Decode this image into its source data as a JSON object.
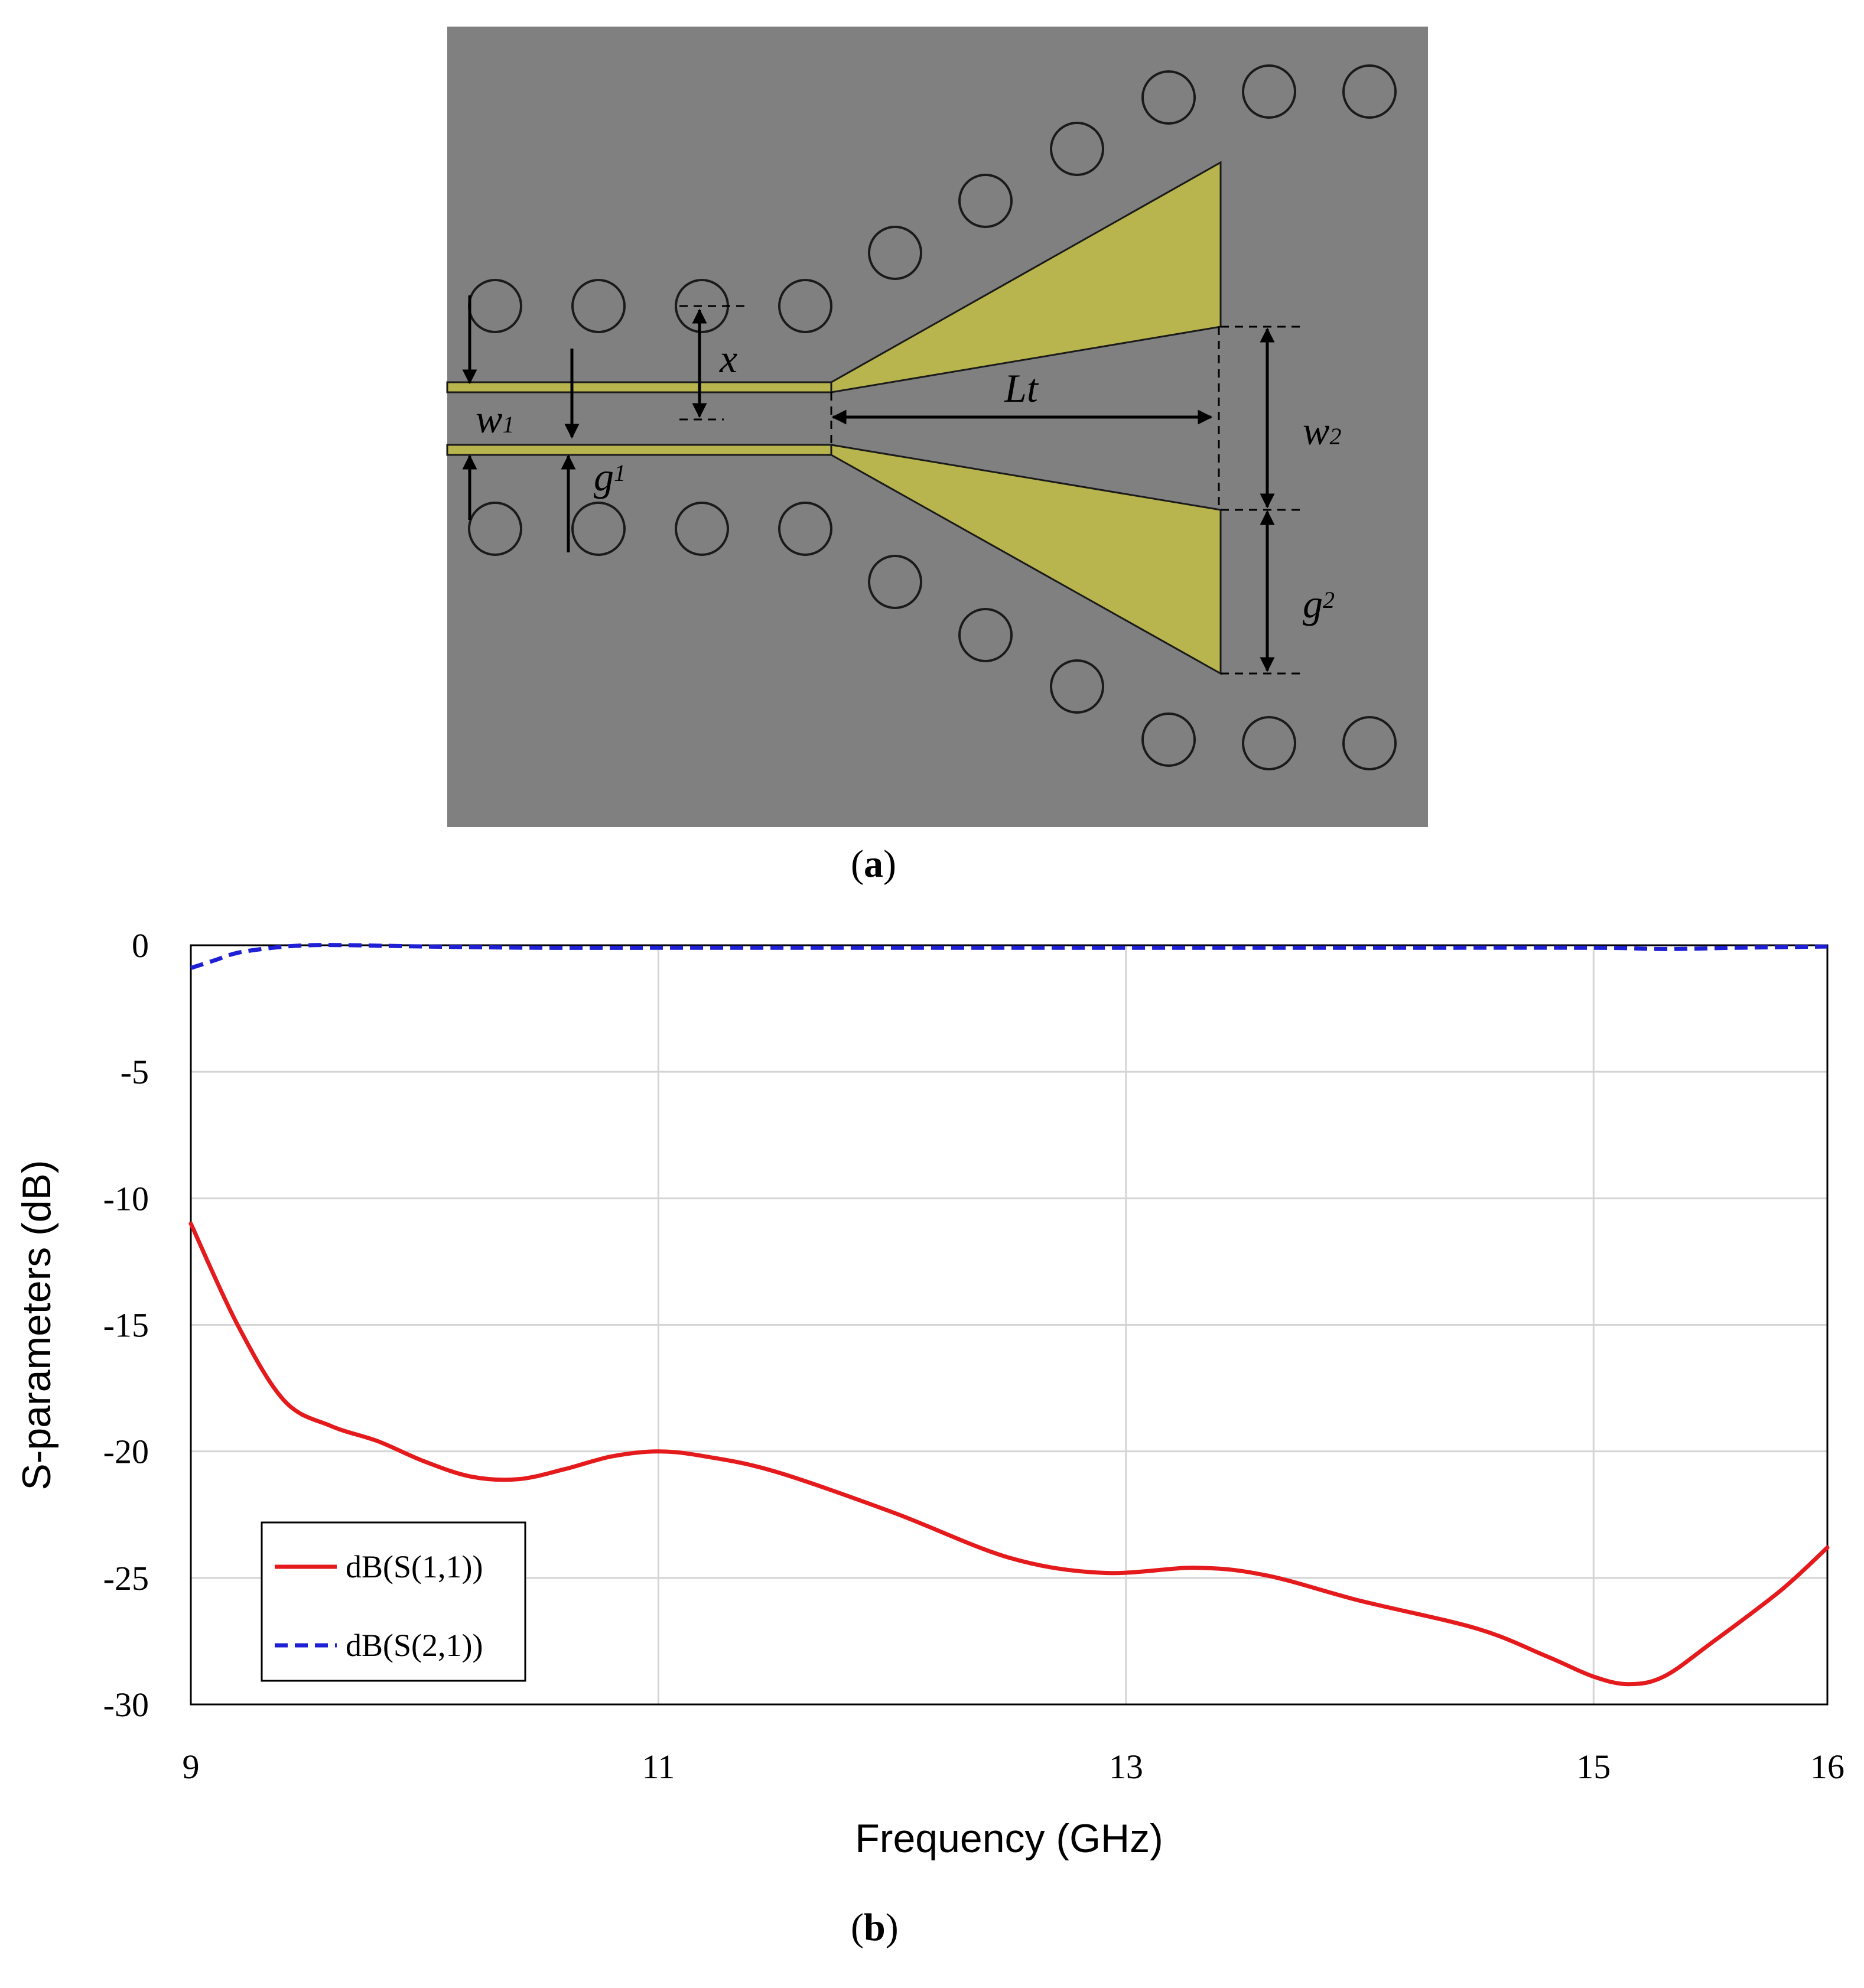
{
  "figure_a": {
    "caption_letter": "a",
    "labels": {
      "x": "x",
      "lt": "Lt",
      "w1_main": "w",
      "w1_sub": "1",
      "g1_main": "g",
      "g1_sub": "1",
      "w2_main": "w",
      "w2_sub": "2",
      "g2_main": "g",
      "g2_sub": "2"
    },
    "colors": {
      "substrate": "#808080",
      "metal": "#b8b44e",
      "outline": "#1a1a1a"
    }
  },
  "figure_b": {
    "caption_letter": "b"
  },
  "chart_data": {
    "type": "line",
    "title": "",
    "xlabel": "Frequency (GHz)",
    "ylabel": "S-parameters (dB)",
    "xlim": [
      9,
      16
    ],
    "ylim": [
      -30,
      0
    ],
    "xticks": [
      9,
      11,
      13,
      15,
      16
    ],
    "xtick_labels": [
      "9",
      "11",
      "13",
      "15",
      "16"
    ],
    "yticks": [
      0,
      -5,
      -10,
      -15,
      -20,
      -25,
      -30
    ],
    "ytick_labels": [
      "0",
      "-5",
      "-10",
      "-15",
      "-20",
      "-25",
      "-30"
    ],
    "grid": true,
    "legend_position": "bottom-left",
    "series": [
      {
        "name": "dB(S(1,1))",
        "color": "#e41a1c",
        "style": "solid",
        "x": [
          9.0,
          9.2,
          9.4,
          9.6,
          9.8,
          10.0,
          10.2,
          10.4,
          10.6,
          10.8,
          11.0,
          11.2,
          11.5,
          12.0,
          12.5,
          12.9,
          13.3,
          13.6,
          14.0,
          14.5,
          14.8,
          15.0,
          15.15,
          15.3,
          15.5,
          15.8,
          16.0
        ],
        "values": [
          -11.0,
          -15.0,
          -18.0,
          -19.0,
          -19.6,
          -20.4,
          -21.0,
          -21.1,
          -20.7,
          -20.2,
          -20.0,
          -20.2,
          -20.8,
          -22.4,
          -24.2,
          -24.8,
          -24.6,
          -24.9,
          -25.9,
          -27.0,
          -28.1,
          -28.9,
          -29.2,
          -28.9,
          -27.6,
          -25.5,
          -23.8
        ]
      },
      {
        "name": "dB(S(2,1))",
        "color": "#1f1fd6",
        "style": "dashed",
        "x": [
          9.0,
          9.1,
          9.2,
          9.35,
          9.5,
          9.7,
          10.0,
          10.5,
          11.0,
          11.5,
          12.0,
          13.0,
          14.0,
          15.0,
          15.3,
          15.6,
          16.0
        ],
        "values": [
          -0.9,
          -0.6,
          -0.3,
          -0.1,
          0.0,
          0.0,
          -0.05,
          -0.1,
          -0.1,
          -0.1,
          -0.1,
          -0.1,
          -0.1,
          -0.1,
          -0.15,
          -0.1,
          -0.05
        ]
      }
    ]
  }
}
